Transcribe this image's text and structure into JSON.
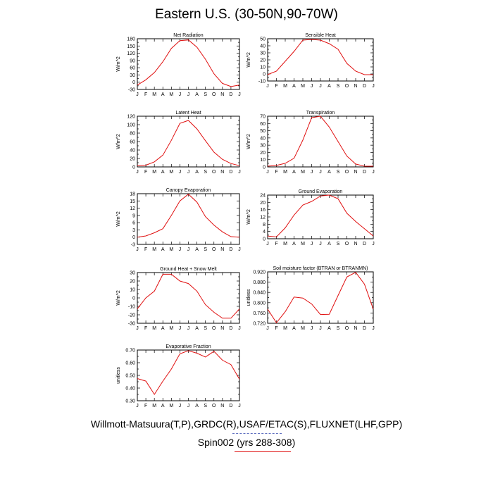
{
  "title": "Eastern U.S. (30-50N,90-70W)",
  "footer": {
    "line1": "Willmott-Matsuura(T,P),GRDC(R),USAF/ETAC(S),FLUXNET(LHF,GPP)",
    "line2": "Spin002 (yrs 288-308)"
  },
  "colors": {
    "series": "#e01010",
    "axis": "#000000"
  },
  "chart_data": [
    {
      "type": "line",
      "title": "Net Radiation",
      "ylabel": "W/m^2",
      "categories": [
        "J",
        "F",
        "M",
        "A",
        "M",
        "J",
        "J",
        "A",
        "S",
        "O",
        "N",
        "D",
        "J"
      ],
      "ylim": [
        -30,
        180
      ],
      "yticks": [
        -30,
        -15,
        0,
        15,
        30,
        45,
        60,
        75,
        90,
        105,
        120,
        135,
        150,
        165,
        180
      ],
      "yticklabels": [
        "-30",
        "",
        "0",
        "",
        "30",
        "",
        "60",
        "",
        "90",
        "",
        "120",
        "",
        "150",
        "",
        "180"
      ],
      "series": [
        {
          "values": [
            -12,
            10,
            40,
            85,
            140,
            172,
            175,
            145,
            95,
            35,
            -5,
            -18,
            -12
          ]
        }
      ]
    },
    {
      "type": "line",
      "title": "Sensible Heat",
      "ylabel": "W/m^2",
      "categories": [
        "J",
        "F",
        "M",
        "A",
        "M",
        "J",
        "J",
        "A",
        "S",
        "O",
        "N",
        "D",
        "J"
      ],
      "ylim": [
        -10,
        50
      ],
      "yticks": [
        -10,
        -5,
        0,
        5,
        10,
        15,
        20,
        25,
        30,
        35,
        40,
        45,
        50
      ],
      "yticklabels": [
        "-10",
        "",
        "0",
        "",
        "10",
        "",
        "20",
        "",
        "30",
        "",
        "40",
        "",
        "50"
      ],
      "series": [
        {
          "values": [
            -1,
            4,
            18,
            32,
            48,
            49,
            48,
            43,
            35,
            15,
            4,
            -1,
            -1
          ]
        }
      ]
    },
    {
      "type": "line",
      "title": "Latent Heat",
      "ylabel": "W/m^2",
      "categories": [
        "J",
        "F",
        "M",
        "A",
        "M",
        "J",
        "J",
        "A",
        "S",
        "O",
        "N",
        "D",
        "J"
      ],
      "ylim": [
        0,
        120
      ],
      "yticks": [
        0,
        10,
        20,
        30,
        40,
        50,
        60,
        70,
        80,
        90,
        100,
        110,
        120
      ],
      "yticklabels": [
        "0",
        "",
        "20",
        "",
        "40",
        "",
        "60",
        "",
        "80",
        "",
        "100",
        "",
        "120"
      ],
      "series": [
        {
          "values": [
            3,
            4,
            12,
            28,
            63,
            103,
            110,
            90,
            62,
            35,
            18,
            8,
            3
          ]
        }
      ]
    },
    {
      "type": "line",
      "title": "Transpiration",
      "ylabel": "W/m^2",
      "categories": [
        "J",
        "F",
        "M",
        "A",
        "M",
        "J",
        "J",
        "A",
        "S",
        "O",
        "N",
        "D",
        "J"
      ],
      "ylim": [
        0,
        70
      ],
      "yticks": [
        0,
        5,
        10,
        15,
        20,
        25,
        30,
        35,
        40,
        45,
        50,
        55,
        60,
        65,
        70
      ],
      "yticklabels": [
        "0",
        "",
        "10",
        "",
        "20",
        "",
        "30",
        "",
        "40",
        "",
        "50",
        "",
        "60",
        "",
        "70"
      ],
      "series": [
        {
          "values": [
            1,
            2,
            5,
            12,
            37,
            68,
            70,
            55,
            35,
            15,
            4,
            1,
            1
          ]
        }
      ]
    },
    {
      "type": "line",
      "title": "Canopy Evaporation",
      "ylabel": "W/m^2",
      "categories": [
        "J",
        "F",
        "M",
        "A",
        "M",
        "J",
        "J",
        "A",
        "S",
        "O",
        "N",
        "D",
        "J"
      ],
      "ylim": [
        -3,
        18
      ],
      "yticks": [
        -3,
        0,
        3,
        6,
        9,
        12,
        15,
        18
      ],
      "yticklabels": [
        "-3",
        "0",
        "3",
        "6",
        "9",
        "12",
        "15",
        "18"
      ],
      "series": [
        {
          "values": [
            0,
            0.5,
            1.8,
            3.5,
            9,
            15,
            17.8,
            14.5,
            8.5,
            5,
            2.2,
            0.2,
            0
          ]
        }
      ]
    },
    {
      "type": "line",
      "title": "Ground Evaporation",
      "ylabel": "W/m^2",
      "categories": [
        "J",
        "F",
        "M",
        "A",
        "M",
        "J",
        "J",
        "A",
        "S",
        "O",
        "N",
        "D",
        "J"
      ],
      "ylim": [
        0,
        24
      ],
      "yticks": [
        0,
        2,
        4,
        6,
        8,
        10,
        12,
        14,
        16,
        18,
        20,
        22,
        24
      ],
      "yticklabels": [
        "0",
        "",
        "4",
        "",
        "8",
        "",
        "12",
        "",
        "16",
        "",
        "20",
        "",
        "24"
      ],
      "series": [
        {
          "values": [
            1.5,
            1,
            6,
            13,
            18.5,
            20.5,
            23.5,
            24,
            22,
            14,
            9.5,
            5.5,
            1.5
          ]
        }
      ]
    },
    {
      "type": "line",
      "title": "Ground Heat + Snow Melt",
      "ylabel": "W/m^2",
      "categories": [
        "J",
        "F",
        "M",
        "A",
        "M",
        "J",
        "J",
        "A",
        "S",
        "O",
        "N",
        "D",
        "J"
      ],
      "ylim": [
        -30,
        30
      ],
      "yticks": [
        -30,
        -25,
        -20,
        -15,
        -10,
        -5,
        0,
        5,
        10,
        15,
        20,
        25,
        30
      ],
      "yticklabels": [
        "-30",
        "",
        "-20",
        "",
        "-10",
        "",
        "0",
        "",
        "10",
        "",
        "20",
        "",
        "30"
      ],
      "series": [
        {
          "values": [
            -13,
            0,
            8,
            28,
            28,
            20,
            17,
            8,
            -8,
            -17,
            -24,
            -24,
            -13
          ]
        }
      ]
    },
    {
      "type": "line",
      "title": "Soil moisture factor (BTRAN or BTRANMN)",
      "ylabel": "unitless",
      "categories": [
        "J",
        "F",
        "M",
        "A",
        "M",
        "J",
        "J",
        "A",
        "S",
        "O",
        "N",
        "D",
        "J"
      ],
      "ylim": [
        0.72,
        0.92
      ],
      "yticks": [
        0.72,
        0.74,
        0.76,
        0.78,
        0.8,
        0.82,
        0.84,
        0.86,
        0.88,
        0.9,
        0.92
      ],
      "yticklabels": [
        "0.720",
        "",
        "0.760",
        "",
        "0.800",
        "",
        "0.840",
        "",
        "0.880",
        "",
        "0.920"
      ],
      "series": [
        {
          "values": [
            0.775,
            0.722,
            0.765,
            0.822,
            0.818,
            0.795,
            0.754,
            0.755,
            0.828,
            0.9,
            0.918,
            0.872,
            0.775
          ]
        }
      ]
    },
    {
      "type": "line",
      "title": "Evaporative Fraction",
      "ylabel": "unitless",
      "categories": [
        "J",
        "F",
        "M",
        "A",
        "M",
        "J",
        "J",
        "A",
        "S",
        "O",
        "N",
        "D",
        "J"
      ],
      "ylim": [
        0.3,
        0.7
      ],
      "yticks": [
        0.3,
        0.35,
        0.4,
        0.45,
        0.5,
        0.55,
        0.6,
        0.65,
        0.7
      ],
      "yticklabels": [
        "0.30",
        "",
        "0.40",
        "",
        "0.50",
        "",
        "0.60",
        "",
        "0.70"
      ],
      "series": [
        {
          "values": [
            0.475,
            0.455,
            0.35,
            0.455,
            0.55,
            0.67,
            0.695,
            0.675,
            0.645,
            0.69,
            0.62,
            0.585,
            0.47
          ]
        }
      ]
    }
  ]
}
